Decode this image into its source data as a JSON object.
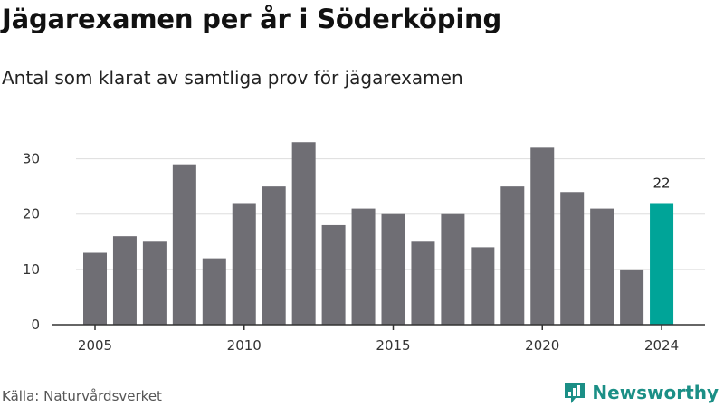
{
  "title": "Jägarexamen per år i Söderköping",
  "subtitle": "Antal som klarat av samtliga prov för jägarexamen",
  "source": "Källa: Naturvårdsverket",
  "brand": "Newsworthy",
  "colors": {
    "bar": "#6f6e74",
    "highlight": "#00a498",
    "grid": "#dddddd",
    "axis": "#333333",
    "brand": "#1b8f86"
  },
  "chart_data": {
    "type": "bar",
    "x": [
      2005,
      2006,
      2007,
      2008,
      2009,
      2010,
      2011,
      2012,
      2013,
      2014,
      2015,
      2016,
      2017,
      2018,
      2019,
      2020,
      2021,
      2022,
      2023,
      2024
    ],
    "values": [
      13,
      16,
      15,
      29,
      12,
      22,
      25,
      33,
      18,
      21,
      20,
      15,
      20,
      14,
      25,
      32,
      24,
      21,
      10,
      22
    ],
    "x_ticks": [
      "2005",
      "2010",
      "2015",
      "2020",
      "2024"
    ],
    "y_ticks": [
      "0",
      "10",
      "20",
      "30"
    ],
    "ylim": [
      0,
      35
    ],
    "grid": true,
    "highlight": {
      "x": 2024,
      "label": "22"
    }
  }
}
